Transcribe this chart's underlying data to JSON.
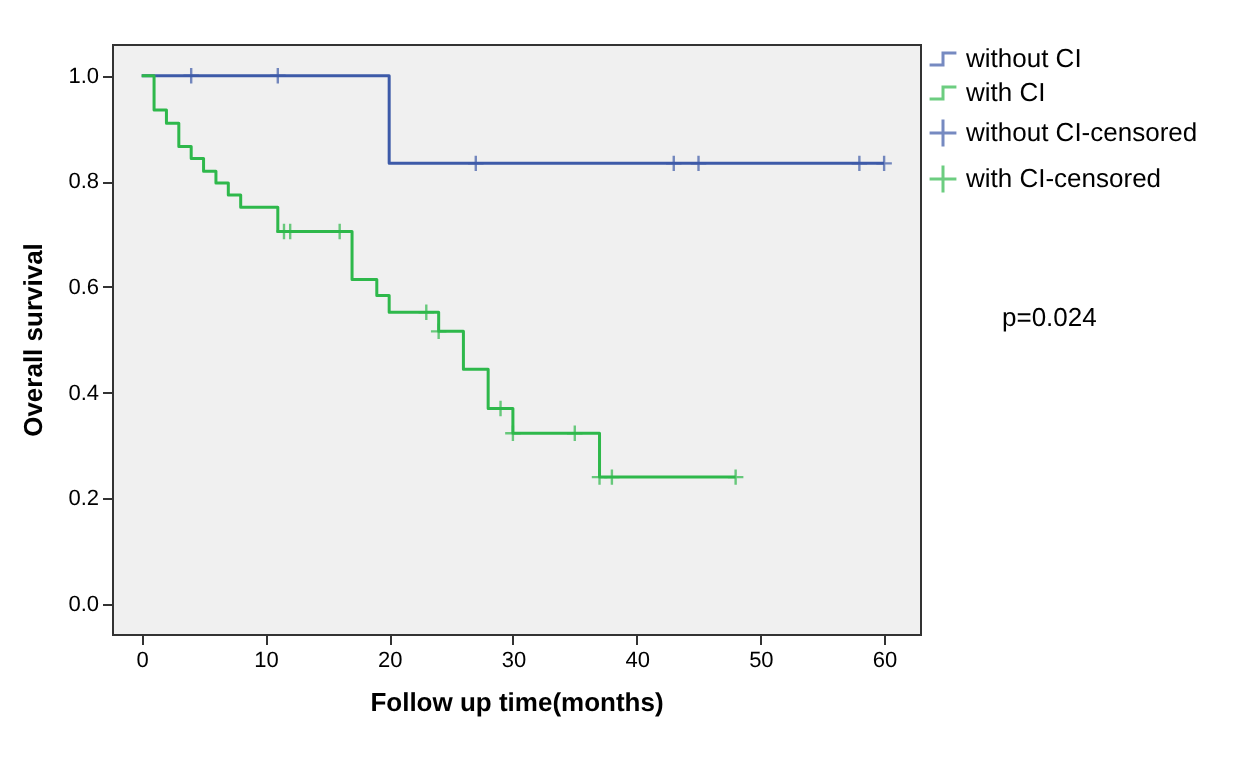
{
  "chart_data": {
    "type": "line",
    "xlabel": "Follow up time(months)",
    "ylabel": "Overall survival",
    "xlim": [
      -2.4,
      62.9
    ],
    "ylim": [
      -0.057,
      1.06
    ],
    "xticks": [
      0,
      10,
      20,
      30,
      40,
      50,
      60
    ],
    "yticks": [
      {
        "value": 0,
        "label": "0.0"
      },
      {
        "value": 0.2,
        "label": "0.2"
      },
      {
        "value": 0.4,
        "label": "0.4"
      },
      {
        "value": 0.6,
        "label": "0.6"
      },
      {
        "value": 0.8,
        "label": "0.8"
      },
      {
        "value": 1,
        "label": "1.0"
      }
    ],
    "grid": false,
    "legend": "right",
    "annotations": [
      "p=0.024"
    ],
    "series": [
      {
        "name": "without CI",
        "type": "step",
        "color": "#3d5aa8",
        "x": [
          0,
          20,
          60
        ],
        "values": [
          1.0,
          0.834,
          0.834
        ]
      },
      {
        "name": "with CI",
        "type": "step",
        "color": "#2eb84b",
        "x": [
          0,
          1,
          2,
          3,
          4,
          5,
          6,
          7,
          8,
          11,
          17,
          19,
          20,
          24,
          26,
          28,
          30,
          37,
          48
        ],
        "values": [
          1.0,
          0.935,
          0.91,
          0.866,
          0.843,
          0.819,
          0.797,
          0.774,
          0.751,
          0.705,
          0.614,
          0.584,
          0.552,
          0.516,
          0.444,
          0.37,
          0.323,
          0.24,
          0.24
        ]
      },
      {
        "name": "without CI-censored",
        "type": "scatter",
        "marker": "cross",
        "color": "#3d5aa8",
        "x": [
          4,
          11,
          27,
          43,
          45,
          58,
          60
        ],
        "values": [
          1.0,
          1.0,
          0.834,
          0.834,
          0.834,
          0.834,
          0.834
        ]
      },
      {
        "name": "with CI-censored",
        "type": "scatter",
        "marker": "cross",
        "color": "#2eb84b",
        "x": [
          11.5,
          12,
          16,
          23,
          24,
          29,
          30,
          35,
          37,
          38,
          48
        ],
        "values": [
          0.705,
          0.705,
          0.705,
          0.552,
          0.516,
          0.37,
          0.323,
          0.323,
          0.24,
          0.24,
          0.24
        ]
      }
    ]
  }
}
